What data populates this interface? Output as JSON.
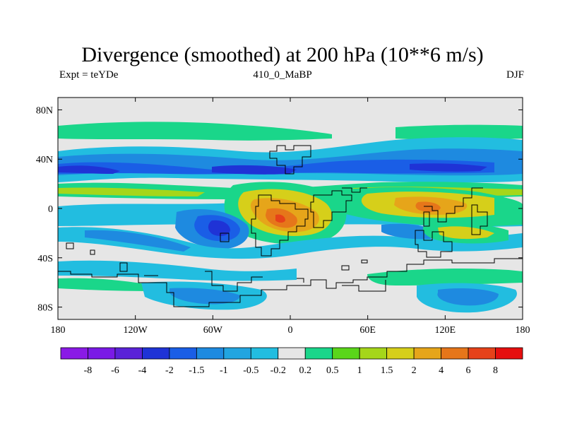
{
  "chart_data": {
    "type": "heatmap",
    "title": "Divergence (smoothed) at 200 hPa (10**6 m/s)",
    "left_label": "Expt = teYDe",
    "center_label": "410_0_MaBP",
    "right_label": "DJF",
    "x_ticks": [
      "180",
      "120W",
      "60W",
      "0",
      "60E",
      "120E",
      "180"
    ],
    "y_ticks": [
      "80N",
      "40N",
      "0",
      "40S",
      "80S"
    ],
    "lon_range": [
      -180,
      180
    ],
    "lat_range": [
      -90,
      90
    ],
    "legend_levels": [
      "-8",
      "-6",
      "-4",
      "-2",
      "-1.5",
      "-1",
      "-0.5",
      "-0.2",
      "0.2",
      "0.5",
      "1",
      "1.5",
      "2",
      "4",
      "6",
      "8"
    ],
    "legend_colors": [
      "#8a1ae6",
      "#7a1ae6",
      "#5a22d8",
      "#1f33d6",
      "#1a5ee6",
      "#1e8ae0",
      "#22a5e0",
      "#22bde0",
      "#e6e6e6",
      "#1ad68a",
      "#5ad61a",
      "#a5d61a",
      "#d6cf1a",
      "#e6a51a",
      "#e6761a",
      "#e6421a",
      "#e60f0f"
    ],
    "background_color": "#e6e6e6"
  }
}
